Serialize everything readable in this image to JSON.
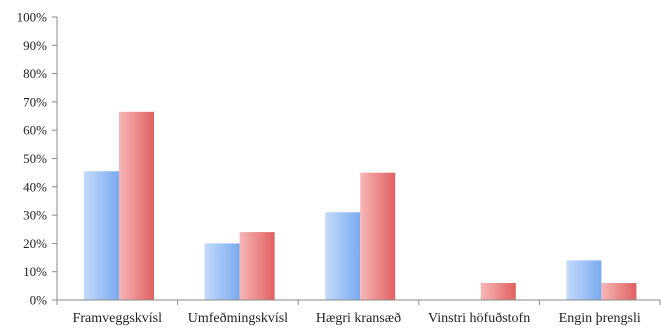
{
  "chart_data": {
    "type": "bar",
    "title": "",
    "xlabel": "",
    "ylabel": "",
    "ylim": [
      0,
      100
    ],
    "y_ticks": [
      "0%",
      "10%",
      "20%",
      "30%",
      "40%",
      "50%",
      "60%",
      "70%",
      "80%",
      "90%",
      "100%"
    ],
    "grid": false,
    "legend": "none",
    "categories": [
      "Framveggskvísl",
      "Umfeðmingskvísl",
      "Hægri kransæð",
      "Vinstri höfuðstofn",
      "Engin þrengsli"
    ],
    "series": [
      {
        "values": [
          45.5,
          20,
          31,
          0,
          14
        ],
        "color": "#7aaaf0",
        "color_light": "#c4dbfb"
      },
      {
        "values": [
          66.5,
          24,
          45,
          6,
          6
        ],
        "color": "#e06060",
        "color_light": "#f7b7b7"
      }
    ]
  }
}
